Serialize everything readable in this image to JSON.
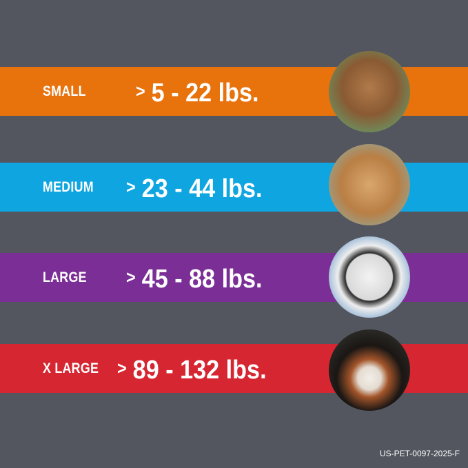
{
  "colors": {
    "background": "#53565e",
    "small": "#e8720c",
    "medium": "#0ea5e0",
    "large": "#7b2f96",
    "x_large": "#d62631"
  },
  "sizes": [
    {
      "label": "SMALL",
      "arrow": ">",
      "range": "5 - 22 lbs.",
      "image": "terrier-dog-photo"
    },
    {
      "label": "MEDIUM",
      "arrow": ">",
      "range": "23 - 44 lbs.",
      "image": "cocker-spaniel-dog-photo"
    },
    {
      "label": "LARGE",
      "arrow": ">",
      "range": "45 - 88 lbs.",
      "image": "dalmatian-dog-photo"
    },
    {
      "label": "X LARGE",
      "arrow": ">",
      "range": "89 - 132 lbs.",
      "image": "bernese-mountain-dog-photo"
    }
  ],
  "footer": "US-PET-0097-2025-F"
}
